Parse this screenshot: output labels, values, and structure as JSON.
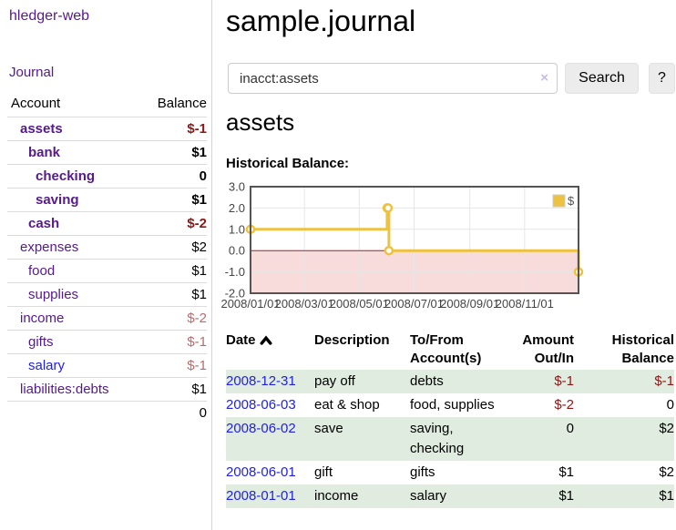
{
  "app": {
    "name": "hledger-web"
  },
  "colors": {
    "link_purple": "#551a8b",
    "link_blue": "#2222dd",
    "negative_strong": "#8b1717",
    "negative_muted": "#b96c6c",
    "row_green": "#e0ecdf",
    "chart_series_gold": "#edc240",
    "chart_negative_fill": "#f8dbdb",
    "chart_zero_line": "#a22222",
    "chart_grid": "#e6e6e6",
    "chart_border": "#545454"
  },
  "sidebar": {
    "journal_link": "Journal",
    "accounts_table": {
      "headers": [
        "Account",
        "Balance"
      ],
      "rows": [
        {
          "account": "assets",
          "balance": "$-1",
          "depth": 1,
          "bold": true,
          "negative": true
        },
        {
          "account": "bank",
          "balance": "$1",
          "depth": 2,
          "bold": true,
          "negative": false
        },
        {
          "account": "checking",
          "balance": "0",
          "depth": 3,
          "bold": true,
          "negative": false
        },
        {
          "account": "saving",
          "balance": "$1",
          "depth": 3,
          "bold": true,
          "negative": false
        },
        {
          "account": "cash",
          "balance": "$-2",
          "depth": 2,
          "bold": true,
          "negative": true
        },
        {
          "account": "expenses",
          "balance": "$2",
          "depth": 1,
          "bold": false,
          "negative": false
        },
        {
          "account": "food",
          "balance": "$1",
          "depth": 2,
          "bold": false,
          "negative": false
        },
        {
          "account": "supplies",
          "balance": "$1",
          "depth": 2,
          "bold": false,
          "negative": false
        },
        {
          "account": "income",
          "balance": "$-2",
          "depth": 1,
          "bold": false,
          "negative": true
        },
        {
          "account": "gifts",
          "balance": "$-1",
          "depth": 2,
          "bold": false,
          "negative": true
        },
        {
          "account": "salary",
          "balance": "$-1",
          "depth": 2,
          "bold": false,
          "negative": true,
          "blue": true
        },
        {
          "account": "liabilities:debts",
          "balance": "$1",
          "depth": 1,
          "bold": false,
          "negative": false
        }
      ],
      "total": "0"
    }
  },
  "header": {
    "title": "sample.journal"
  },
  "search": {
    "value": "inacct:assets",
    "clear_icon": "×",
    "button_label": "Search",
    "help_label": "?"
  },
  "account_page": {
    "title": "assets",
    "chart_label": "Historical Balance:"
  },
  "chart_data": {
    "type": "line",
    "style": "steps",
    "title": "Historical Balance",
    "xrange": [
      "2008-01-01",
      "2008-12-31"
    ],
    "ylim": [
      -2,
      3
    ],
    "yticks": [
      3.0,
      2.0,
      1.0,
      0.0,
      -1.0,
      -2.0
    ],
    "xticks": [
      {
        "date": "2008-01-01",
        "label": "2008/01/01"
      },
      {
        "date": "2008-03-01",
        "label": "2008/03/01"
      },
      {
        "date": "2008-05-01",
        "label": "2008/05/01"
      },
      {
        "date": "2008-07-01",
        "label": "2008/07/01"
      },
      {
        "date": "2008-09-01",
        "label": "2008/09/01"
      },
      {
        "date": "2008-11-01",
        "label": "2008/11/01"
      }
    ],
    "series": [
      {
        "name": "$",
        "points": [
          [
            "2008-01-01",
            1
          ],
          [
            "2008-06-01",
            2
          ],
          [
            "2008-06-02",
            2
          ],
          [
            "2008-06-03",
            0
          ],
          [
            "2008-12-31",
            -1
          ]
        ]
      }
    ],
    "legend_position": "top-right",
    "grid": true,
    "negative_region_shaded": true
  },
  "register_table": {
    "headers": {
      "date": "Date",
      "description": "Description",
      "account": "To/From Account(s)",
      "amount": "Amount Out/In",
      "balance": "Historical Balance"
    },
    "rows": [
      {
        "date": "2008-12-31",
        "description": "pay off",
        "accounts": "debts",
        "amount": "$-1",
        "amount_negative": true,
        "balance": "$-1",
        "balance_negative": true
      },
      {
        "date": "2008-06-03",
        "description": "eat & shop",
        "accounts": "food, supplies",
        "amount": "$-2",
        "amount_negative": true,
        "balance": "0",
        "balance_negative": false
      },
      {
        "date": "2008-06-02",
        "description": "save",
        "accounts": "saving,\nchecking",
        "amount": "0",
        "amount_negative": false,
        "balance": "$2",
        "balance_negative": false
      },
      {
        "date": "2008-06-01",
        "description": "gift",
        "accounts": "gifts",
        "amount": "$1",
        "amount_negative": false,
        "balance": "$2",
        "balance_negative": false
      },
      {
        "date": "2008-01-01",
        "description": "income",
        "accounts": "salary",
        "amount": "$1",
        "amount_negative": false,
        "balance": "$1",
        "balance_negative": false
      }
    ]
  }
}
